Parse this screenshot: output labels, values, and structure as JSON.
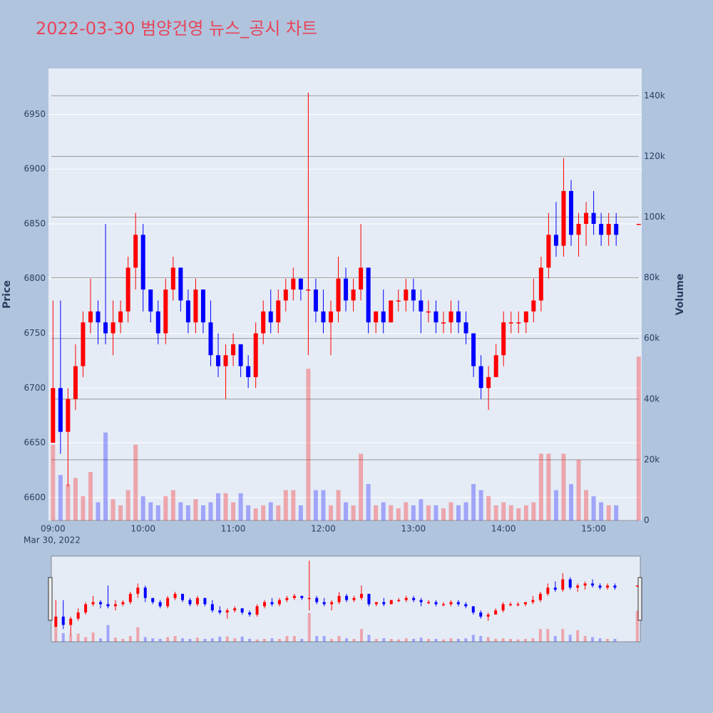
{
  "chart_data": {
    "type": "candlestick",
    "title": "2022-03-30 범양건영 뉴스_공시 차트",
    "ylabel": "Price",
    "y2label": "Volume",
    "date_label": "Mar 30, 2022",
    "increasing_color": "#ff0000",
    "decreasing_color": "#0000ff",
    "x": [
      "09:00",
      "09:05",
      "09:10",
      "09:15",
      "09:20",
      "09:25",
      "09:30",
      "09:35",
      "09:40",
      "09:45",
      "09:50",
      "09:55",
      "10:00",
      "10:05",
      "10:10",
      "10:15",
      "10:20",
      "10:25",
      "10:30",
      "10:35",
      "10:40",
      "10:45",
      "10:50",
      "10:55",
      "11:00",
      "11:05",
      "11:10",
      "11:15",
      "11:20",
      "11:25",
      "11:30",
      "11:35",
      "11:40",
      "11:45",
      "11:50",
      "11:55",
      "12:00",
      "12:05",
      "12:10",
      "12:15",
      "12:20",
      "12:25",
      "12:30",
      "12:35",
      "12:40",
      "12:45",
      "12:50",
      "12:55",
      "13:00",
      "13:05",
      "13:10",
      "13:15",
      "13:20",
      "13:25",
      "13:30",
      "13:35",
      "13:40",
      "13:45",
      "13:50",
      "13:55",
      "14:00",
      "14:05",
      "14:10",
      "14:15",
      "14:20",
      "14:25",
      "14:30",
      "14:35",
      "14:40",
      "14:45",
      "14:50",
      "14:55",
      "15:00",
      "15:05",
      "15:10",
      "15:15",
      "15:30"
    ],
    "open": [
      6650,
      6700,
      6660,
      6690,
      6720,
      6760,
      6770,
      6760,
      6750,
      6760,
      6770,
      6810,
      6840,
      6790,
      6770,
      6750,
      6790,
      6810,
      6780,
      6760,
      6790,
      6760,
      6730,
      6720,
      6730,
      6740,
      6720,
      6710,
      6750,
      6770,
      6760,
      6780,
      6790,
      6800,
      6790,
      6790,
      6770,
      6760,
      6770,
      6800,
      6780,
      6790,
      6810,
      6760,
      6770,
      6760,
      6780,
      6780,
      6790,
      6780,
      6770,
      6770,
      6760,
      6760,
      6770,
      6760,
      6750,
      6720,
      6700,
      6710,
      6730,
      6760,
      6760,
      6760,
      6770,
      6780,
      6810,
      6840,
      6830,
      6880,
      6840,
      6850,
      6860,
      6850,
      6840,
      6850,
      6850
    ],
    "high": [
      6780,
      6780,
      6700,
      6740,
      6770,
      6800,
      6780,
      6850,
      6780,
      6780,
      6820,
      6860,
      6850,
      6790,
      6780,
      6800,
      6820,
      6810,
      6790,
      6800,
      6790,
      6780,
      6750,
      6740,
      6750,
      6740,
      6730,
      6760,
      6780,
      6790,
      6790,
      6800,
      6810,
      6800,
      6970,
      6800,
      6790,
      6780,
      6820,
      6810,
      6800,
      6850,
      6810,
      6770,
      6790,
      6780,
      6790,
      6800,
      6800,
      6790,
      6780,
      6780,
      6770,
      6780,
      6780,
      6770,
      6750,
      6730,
      6720,
      6740,
      6770,
      6770,
      6770,
      6770,
      6800,
      6820,
      6860,
      6870,
      6910,
      6890,
      6860,
      6870,
      6880,
      6860,
      6860,
      6860,
      6850
    ],
    "low": [
      6650,
      6640,
      6610,
      6680,
      6710,
      6750,
      6740,
      6740,
      6730,
      6750,
      6760,
      6790,
      6770,
      6760,
      6740,
      6740,
      6780,
      6770,
      6750,
      6750,
      6750,
      6720,
      6710,
      6690,
      6720,
      6710,
      6700,
      6700,
      6740,
      6750,
      6750,
      6770,
      6780,
      6780,
      6730,
      6760,
      6750,
      6730,
      6760,
      6770,
      6770,
      6780,
      6750,
      6750,
      6750,
      6760,
      6770,
      6770,
      6770,
      6750,
      6760,
      6750,
      6750,
      6750,
      6750,
      6740,
      6710,
      6690,
      6680,
      6710,
      6720,
      6750,
      6750,
      6750,
      6760,
      6770,
      6800,
      6820,
      6820,
      6830,
      6820,
      6830,
      6840,
      6830,
      6830,
      6830,
      6850
    ],
    "close": [
      6700,
      6660,
      6690,
      6720,
      6760,
      6770,
      6760,
      6750,
      6760,
      6770,
      6810,
      6840,
      6790,
      6770,
      6750,
      6790,
      6810,
      6780,
      6760,
      6790,
      6760,
      6730,
      6720,
      6730,
      6740,
      6720,
      6710,
      6750,
      6770,
      6760,
      6780,
      6790,
      6800,
      6790,
      6790,
      6770,
      6760,
      6770,
      6800,
      6780,
      6790,
      6810,
      6760,
      6770,
      6760,
      6780,
      6780,
      6790,
      6780,
      6770,
      6770,
      6760,
      6760,
      6770,
      6760,
      6750,
      6720,
      6700,
      6710,
      6730,
      6760,
      6760,
      6760,
      6770,
      6780,
      6810,
      6840,
      6830,
      6880,
      6840,
      6850,
      6860,
      6850,
      6840,
      6850,
      6840,
      6850
    ],
    "volume": [
      25000,
      15000,
      12000,
      14000,
      8000,
      16000,
      6000,
      29000,
      7000,
      5000,
      10000,
      25000,
      8000,
      6000,
      5000,
      8000,
      10000,
      6000,
      5000,
      7000,
      5000,
      6000,
      9000,
      9000,
      6000,
      9000,
      5000,
      4000,
      5000,
      6000,
      5000,
      10000,
      10000,
      5000,
      50000,
      10000,
      10000,
      5000,
      10000,
      6000,
      5000,
      22000,
      12000,
      5000,
      6000,
      5000,
      4000,
      6000,
      5000,
      7000,
      5000,
      5000,
      4000,
      6000,
      5000,
      6000,
      12000,
      10000,
      8000,
      5000,
      6000,
      5000,
      4000,
      5000,
      6000,
      22000,
      22000,
      10000,
      22000,
      12000,
      20000,
      10000,
      8000,
      6000,
      5000,
      5000,
      54000
    ],
    "xlim": [
      "08:57",
      "15:32"
    ],
    "xticks": [
      "09:00",
      "10:00",
      "11:00",
      "12:00",
      "13:00",
      "14:00",
      "15:00"
    ],
    "ylim": [
      6579,
      6992
    ],
    "yticks": [
      6600,
      6650,
      6700,
      6750,
      6800,
      6850,
      6900,
      6950
    ],
    "y2lim": [
      0,
      149000
    ],
    "y2ticks": [
      0,
      {
        "value": 20000,
        "label": "20k"
      },
      {
        "value": 40000,
        "label": "40k"
      },
      {
        "value": 60000,
        "label": "60k"
      },
      {
        "value": 80000,
        "label": "80k"
      },
      {
        "value": 100000,
        "label": "100k"
      },
      {
        "value": 120000,
        "label": "120k"
      },
      {
        "value": 140000,
        "label": "140k"
      }
    ],
    "grid": true,
    "rangeslider": true
  }
}
